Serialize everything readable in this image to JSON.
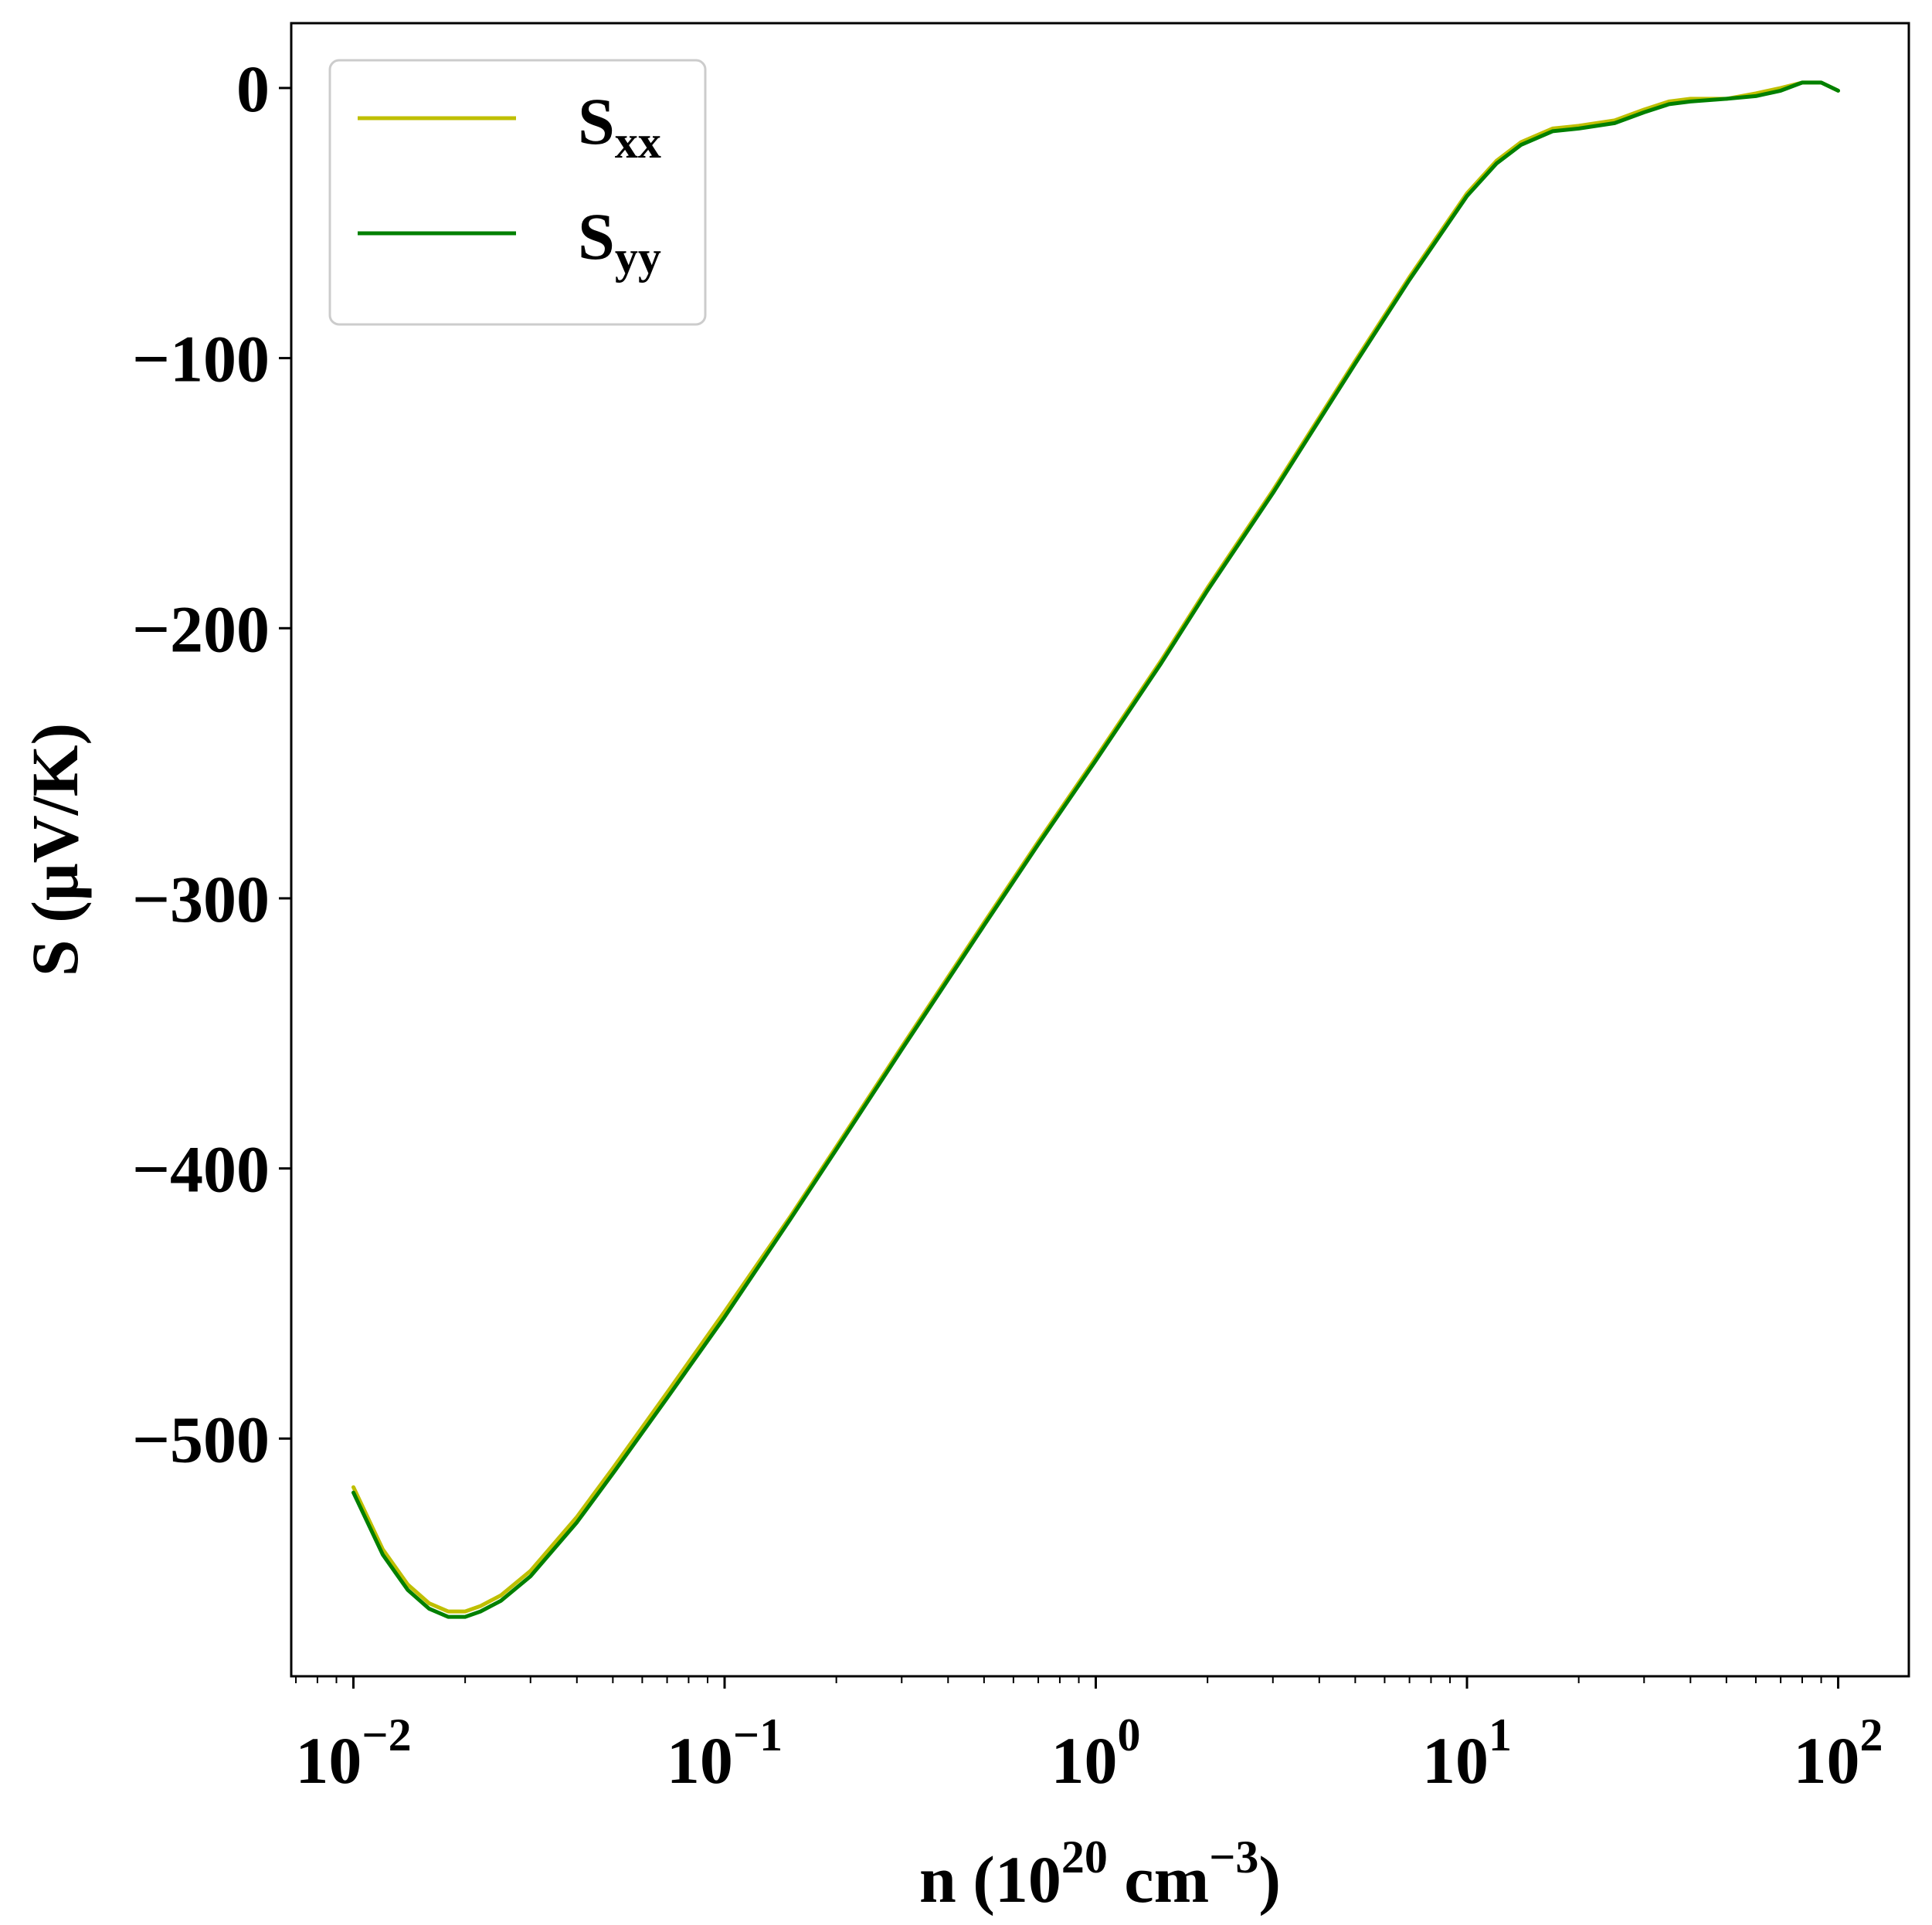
{
  "chart_data": {
    "type": "line",
    "xscale": "log",
    "xlim": [
      0.0068,
      155
    ],
    "ylim": [
      -588,
      24
    ],
    "xlabel": {
      "prefix": "n (10",
      "sup1": "20",
      "middle": " cm",
      "sup2": "−3",
      "suffix": ")"
    },
    "ylabel": "S (μV/K)",
    "x_ticks": [
      {
        "value": 0.01,
        "base": "10",
        "exp": "−2"
      },
      {
        "value": 0.1,
        "base": "10",
        "exp": "−1"
      },
      {
        "value": 1,
        "base": "10",
        "exp": "0"
      },
      {
        "value": 10,
        "base": "10",
        "exp": "1"
      },
      {
        "value": 100,
        "base": "10",
        "exp": "2"
      }
    ],
    "y_ticks": [
      {
        "value": 0,
        "label": "0"
      },
      {
        "value": -100,
        "label": "−100"
      },
      {
        "value": -200,
        "label": "−200"
      },
      {
        "value": -300,
        "label": "−300"
      },
      {
        "value": -400,
        "label": "−400"
      },
      {
        "value": -500,
        "label": "−500"
      }
    ],
    "grid": false,
    "legend_position": "top-left",
    "series": [
      {
        "name": "S",
        "name_sub": "xx",
        "color": "#bfbf00",
        "x": [
          0.01,
          0.012,
          0.014,
          0.016,
          0.018,
          0.019,
          0.02,
          0.022,
          0.025,
          0.03,
          0.04,
          0.05,
          0.07,
          0.1,
          0.15,
          0.2,
          0.3,
          0.5,
          0.7,
          1,
          1.5,
          2,
          3,
          5,
          7,
          10,
          12,
          14,
          17,
          20,
          25,
          30,
          35,
          40,
          50,
          60,
          70,
          80,
          90,
          100
        ],
        "y": [
          -518,
          -541,
          -554,
          -561,
          -564,
          -564,
          -564,
          -562,
          -558,
          -549,
          -529,
          -511,
          -483,
          -453,
          -418,
          -392,
          -355,
          -309,
          -279,
          -248,
          -212,
          -185,
          -149,
          -101,
          -70,
          -39,
          -27,
          -20,
          -15,
          -14,
          -12,
          -8,
          -5,
          -4,
          -4,
          -2,
          0,
          2,
          2,
          -1
        ]
      },
      {
        "name": "S",
        "name_sub": "yy",
        "color": "#008000",
        "x": [
          0.01,
          0.012,
          0.014,
          0.016,
          0.018,
          0.019,
          0.02,
          0.022,
          0.025,
          0.03,
          0.04,
          0.05,
          0.07,
          0.1,
          0.15,
          0.2,
          0.3,
          0.5,
          0.7,
          1,
          1.5,
          2,
          3,
          5,
          7,
          10,
          12,
          14,
          17,
          20,
          25,
          30,
          35,
          40,
          50,
          60,
          70,
          80,
          90,
          100
        ],
        "y": [
          -520,
          -543,
          -556,
          -563,
          -566,
          -566,
          -566,
          -564,
          -560,
          -551,
          -531,
          -513,
          -485,
          -455,
          -419,
          -393,
          -356,
          -310,
          -280,
          -249,
          -213,
          -186,
          -150,
          -102,
          -71,
          -40,
          -28,
          -21,
          -16,
          -15,
          -13,
          -9,
          -6,
          -5,
          -4,
          -3,
          -1,
          2,
          2,
          -1
        ]
      }
    ]
  }
}
